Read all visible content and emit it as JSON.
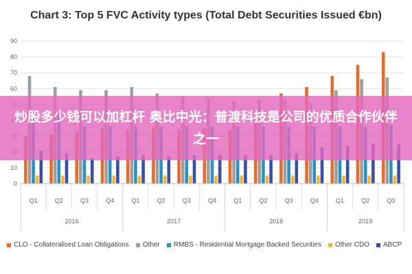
{
  "chart_data": {
    "type": "bar",
    "title": "Chart 3: Top 5 FVC Activity types (Total Debt Securities Issued €bn)",
    "ylim": [
      0,
      90
    ],
    "yticks": [
      0,
      10,
      20,
      30,
      40,
      50,
      60,
      70,
      80,
      90
    ],
    "grid": true,
    "legend_position": "bottom",
    "categories": [
      "Q1",
      "Q2",
      "Q3",
      "Q4",
      "Q1",
      "Q2",
      "Q3",
      "Q4",
      "Q1",
      "Q2",
      "Q3",
      "Q4",
      "Q1",
      "Q2",
      "Q3"
    ],
    "years": [
      {
        "label": "2016",
        "count": 4
      },
      {
        "label": "2017",
        "count": 4
      },
      {
        "label": "2018",
        "count": 4
      },
      {
        "label": "2019",
        "count": 3
      }
    ],
    "series": [
      {
        "name": "CLO - Collateralised Loan Obligations",
        "color": "#E46C2C",
        "values": [
          30,
          31,
          33,
          35,
          34,
          36,
          34,
          35,
          34,
          39,
          57,
          61,
          68,
          75,
          83
        ]
      },
      {
        "name": "Other",
        "color": "#9E9E9E",
        "values": [
          68,
          61,
          59,
          59,
          61,
          57,
          55,
          54,
          52,
          53,
          53,
          51,
          59,
          66,
          67
        ]
      },
      {
        "name": "RMBS - Residential Mortgage Backed Securities",
        "color": "#2E8FC0",
        "values": [
          45,
          44,
          36,
          36,
          36,
          36,
          36,
          36,
          36,
          36,
          36,
          36,
          36,
          36,
          37
        ]
      },
      {
        "name": "Other CDO",
        "color": "#F2B43C",
        "values": [
          5,
          5,
          5,
          5,
          5,
          5,
          5,
          5,
          5,
          5,
          5,
          5,
          5,
          5,
          5
        ]
      },
      {
        "name": "ABCP",
        "color": "#3A4FA0",
        "values": [
          21,
          19,
          16,
          17,
          18,
          17,
          18,
          18,
          18,
          18,
          19,
          23,
          24,
          25,
          25
        ]
      }
    ]
  },
  "overlay": {
    "text": "炒股多少钱可以加杠杆 奥比中光：普渡科技是公司的优质合作伙伴之一"
  }
}
